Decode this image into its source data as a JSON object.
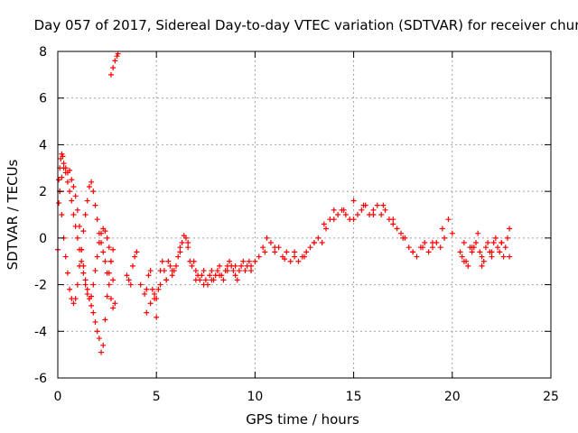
{
  "chart_data": {
    "type": "scatter",
    "title": "Day 057 of 2017, Sidereal Day-to-day VTEC variation (SDTVAR) for receiver chur",
    "xlabel": "GPS time / hours",
    "ylabel": "SDTVAR / TECUs",
    "xlim": [
      0,
      25
    ],
    "ylim": [
      -6,
      8
    ],
    "xticks": [
      0,
      5,
      10,
      15,
      20,
      25
    ],
    "yticks": [
      -6,
      -4,
      -2,
      0,
      2,
      4,
      6,
      8
    ],
    "grid": true,
    "marker": "+",
    "color": "#ff0000",
    "series": [
      {
        "name": "SDTVAR",
        "x": [
          0.0,
          0.05,
          0.1,
          0.15,
          0.2,
          0.25,
          0.3,
          0.4,
          0.5,
          0.6,
          0.7,
          0.8,
          0.9,
          1.0,
          1.1,
          1.2,
          1.3,
          1.4,
          1.5,
          1.6,
          1.7,
          1.8,
          1.9,
          2.0,
          2.1,
          2.2,
          2.3,
          2.4,
          2.5,
          2.6,
          2.7,
          2.8,
          0.05,
          0.1,
          0.2,
          0.3,
          0.4,
          0.5,
          0.6,
          0.7,
          0.8,
          0.9,
          1.0,
          1.1,
          1.2,
          1.3,
          1.4,
          1.5,
          1.6,
          1.7,
          1.8,
          1.9,
          2.0,
          2.1,
          2.2,
          2.3,
          2.4,
          2.5,
          2.6,
          2.7,
          2.8,
          0.1,
          0.2,
          0.3,
          0.4,
          0.5,
          0.6,
          0.7,
          0.8,
          0.9,
          1.0,
          1.1,
          1.2,
          1.3,
          1.4,
          1.5,
          1.6,
          1.7,
          1.8,
          1.9,
          2.0,
          2.1,
          2.2,
          2.3,
          2.4,
          2.5,
          2.6,
          2.7,
          2.8,
          2.9,
          2.7,
          2.8,
          2.9,
          3.0,
          3.05,
          3.5,
          3.6,
          3.7,
          3.8,
          3.9,
          4.0,
          4.2,
          4.4,
          4.5,
          4.6,
          4.7,
          4.8,
          4.9,
          5.0,
          5.1,
          5.2,
          5.3,
          5.4,
          5.5,
          5.6,
          5.7,
          5.8,
          5.9,
          6.0,
          6.1,
          6.2,
          6.3,
          6.4,
          6.5,
          6.6,
          6.7,
          6.8,
          6.9,
          7.0,
          7.1,
          7.2,
          7.3,
          7.4,
          7.5,
          7.6,
          7.7,
          7.8,
          7.9,
          8.0,
          8.1,
          8.2,
          8.3,
          8.4,
          8.5,
          8.6,
          8.7,
          8.8,
          8.9,
          9.0,
          9.1,
          9.2,
          9.3,
          9.4,
          9.5,
          9.6,
          9.7,
          9.8,
          4.5,
          4.7,
          4.9,
          5.0,
          5.2,
          5.5,
          5.8,
          6.2,
          6.6,
          7.0,
          7.4,
          7.8,
          8.2,
          8.6,
          9.0,
          9.8,
          10.0,
          10.2,
          10.4,
          10.6,
          10.8,
          11.0,
          11.2,
          11.4,
          11.6,
          11.8,
          12.0,
          12.2,
          12.4,
          12.6,
          12.8,
          13.0,
          13.2,
          13.4,
          13.6,
          13.8,
          14.0,
          14.2,
          14.4,
          14.6,
          14.8,
          15.0,
          15.2,
          15.4,
          15.6,
          15.8,
          16.0,
          16.2,
          16.4,
          16.6,
          16.8,
          17.0,
          17.2,
          17.4,
          17.6,
          17.8,
          18.0,
          18.2,
          18.4,
          18.6,
          18.8,
          19.0,
          19.2,
          19.4,
          19.6,
          19.8,
          20.0,
          10.5,
          11.0,
          11.5,
          12.0,
          12.5,
          13.0,
          13.5,
          14.0,
          14.5,
          15.0,
          15.5,
          16.0,
          16.5,
          17.0,
          17.5,
          18.0,
          18.5,
          19.0,
          19.5,
          20.4,
          20.5,
          20.6,
          20.7,
          20.8,
          20.9,
          21.0,
          21.1,
          21.2,
          21.3,
          21.4,
          21.5,
          21.6,
          21.7,
          21.8,
          21.9,
          22.0,
          22.1,
          22.2,
          22.3,
          22.4,
          22.5,
          22.6,
          22.7,
          22.8,
          22.9,
          20.6,
          21.0,
          21.5,
          22.0,
          22.5,
          22.9
        ],
        "y": [
          -0.5,
          1.5,
          3.0,
          3.4,
          3.6,
          3.5,
          3.2,
          3.0,
          2.8,
          2.9,
          2.5,
          2.2,
          1.8,
          1.2,
          0.5,
          -0.5,
          -1.2,
          -1.8,
          -2.2,
          -2.6,
          -2.9,
          -3.2,
          -3.6,
          -4.0,
          -4.3,
          -4.9,
          -4.6,
          -3.5,
          -2.5,
          -1.5,
          -1.0,
          -0.5,
          2.5,
          2.0,
          1.0,
          0.0,
          -0.8,
          -1.5,
          -2.2,
          -2.6,
          -2.8,
          -2.6,
          -2.0,
          -1.2,
          -0.5,
          0.3,
          1.0,
          1.6,
          2.2,
          2.4,
          2.0,
          1.4,
          0.8,
          0.2,
          -0.2,
          -0.6,
          -1.0,
          -1.5,
          -2.0,
          -2.6,
          -3.0,
          2.0,
          2.6,
          3.0,
          2.8,
          2.4,
          2.0,
          1.6,
          1.0,
          0.5,
          0.0,
          -0.5,
          -1.0,
          -1.5,
          -2.0,
          -2.4,
          -2.6,
          -2.5,
          -2.0,
          -1.4,
          -0.8,
          -0.2,
          0.2,
          0.4,
          0.3,
          0.0,
          -0.4,
          -1.0,
          -1.8,
          -2.8,
          7.0,
          7.3,
          7.6,
          7.8,
          7.9,
          -1.6,
          -1.8,
          -2.0,
          -1.2,
          -0.8,
          -0.6,
          -2.0,
          -2.4,
          -2.2,
          -1.6,
          -1.4,
          -2.2,
          -2.6,
          -3.4,
          -2.2,
          -1.4,
          -1.0,
          -1.4,
          -1.8,
          -1.0,
          -1.2,
          -1.6,
          -1.4,
          -1.2,
          -0.8,
          -0.6,
          -0.2,
          0.1,
          0.0,
          -0.4,
          -1.0,
          -1.2,
          -1.0,
          -1.4,
          -1.6,
          -1.8,
          -1.6,
          -1.4,
          -1.8,
          -2.0,
          -1.6,
          -1.4,
          -1.8,
          -1.6,
          -1.4,
          -1.2,
          -1.6,
          -1.8,
          -1.4,
          -1.2,
          -1.0,
          -1.2,
          -1.4,
          -1.6,
          -1.8,
          -1.4,
          -1.2,
          -1.0,
          -1.4,
          -1.2,
          -1.0,
          -1.4,
          -3.2,
          -2.8,
          -2.4,
          -2.6,
          -2.0,
          -1.8,
          -1.4,
          -0.4,
          -0.2,
          -1.8,
          -2.0,
          -1.8,
          -1.6,
          -1.4,
          -1.2,
          -1.2,
          -1.0,
          -0.8,
          -0.4,
          0.0,
          -0.2,
          -0.6,
          -0.4,
          -0.8,
          -0.6,
          -1.0,
          -0.8,
          -1.0,
          -0.8,
          -0.6,
          -0.4,
          -0.2,
          0.0,
          -0.2,
          0.4,
          0.8,
          1.2,
          1.0,
          1.2,
          1.0,
          0.8,
          0.8,
          1.0,
          1.2,
          1.4,
          1.0,
          1.2,
          1.4,
          1.0,
          1.2,
          0.8,
          0.6,
          0.4,
          0.2,
          0.0,
          -0.4,
          -0.6,
          -0.8,
          -0.4,
          -0.2,
          -0.6,
          -0.4,
          -0.2,
          -0.4,
          0.0,
          0.8,
          0.2,
          -0.6,
          -0.4,
          -0.9,
          -0.6,
          -0.8,
          -0.2,
          0.6,
          0.8,
          1.2,
          1.6,
          1.4,
          1.0,
          1.4,
          0.8,
          0.0,
          -0.6,
          -0.4,
          -0.2,
          0.4,
          -0.6,
          -0.8,
          -0.2,
          -1.0,
          -1.2,
          -0.4,
          -0.6,
          -0.4,
          -0.2,
          0.2,
          -0.6,
          -0.8,
          -1.0,
          -0.4,
          -0.2,
          -0.6,
          -0.8,
          -0.2,
          0.0,
          -0.4,
          -0.6,
          -0.2,
          -0.8,
          -0.4,
          0.0,
          -0.8,
          -1.0,
          -0.4,
          -1.2,
          -0.6,
          -0.2,
          0.4
        ]
      }
    ]
  }
}
